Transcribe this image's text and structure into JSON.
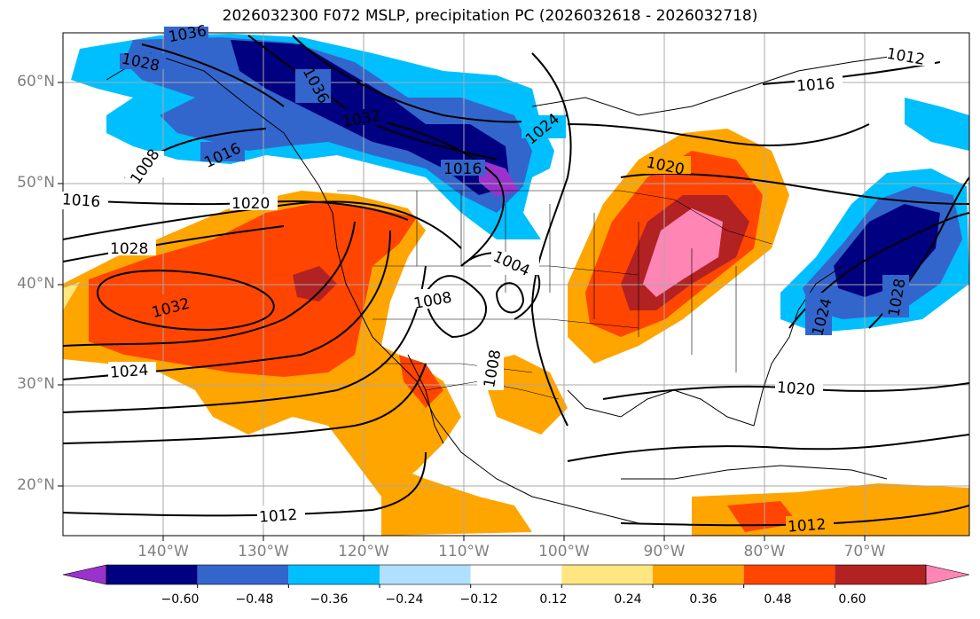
{
  "title": "2026032300 F072 MSLP, precipitation PC (2026032618 - 2026032718)",
  "axes": {
    "lat_labels": [
      "60°N",
      "50°N",
      "40°N",
      "30°N",
      "20°N"
    ],
    "lon_labels": [
      "140°W",
      "130°W",
      "120°W",
      "110°W",
      "100°W",
      "90°W",
      "80°W",
      "70°W"
    ]
  },
  "isobar_labels": [
    "1036",
    "1028",
    "1036",
    "1032",
    "1024",
    "1016",
    "1008",
    "1016",
    "1020",
    "1016",
    "1020",
    "1028",
    "1032",
    "1024",
    "1008",
    "1004",
    "1008",
    "1020",
    "1016",
    "1012",
    "1012",
    "1012",
    "1024",
    "1028"
  ],
  "colorbar": {
    "ticks": [
      "−0.60",
      "−0.48",
      "−0.36",
      "−0.24",
      "−0.12",
      "0.12",
      "0.24",
      "0.36",
      "0.48",
      "0.60"
    ],
    "colors": [
      "#9933cc",
      "#000080",
      "#3366cc",
      "#00bfff",
      "#b0e0ff",
      "#ffffff",
      "#ffe680",
      "#ffa500",
      "#ff4500",
      "#b22222",
      "#ff85b5"
    ]
  },
  "map_colors": {
    "land_lines": "#000000",
    "grid": "#a9a9a9",
    "isobar": "#000000"
  }
}
